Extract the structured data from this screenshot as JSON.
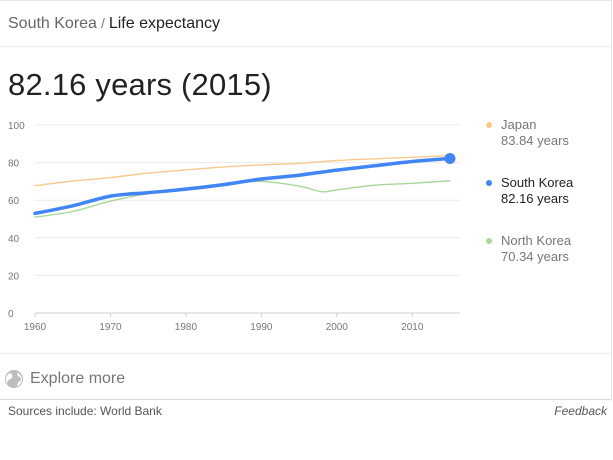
{
  "breadcrumb": {
    "country": "South Korea",
    "separator": "/",
    "topic": "Life expectancy"
  },
  "headline": "82.16 years (2015)",
  "legend": [
    {
      "name": "Japan",
      "value": "83.84 years",
      "color": "#f7c98e"
    },
    {
      "name": "South Korea",
      "value": "82.16 years",
      "color": "#4285f4"
    },
    {
      "name": "North Korea",
      "value": "70.34 years",
      "color": "#a8d79a"
    }
  ],
  "explore_label": "Explore more",
  "sources": "Sources include: World Bank",
  "feedback": "Feedback",
  "icons": {
    "explore": "globe-icon"
  },
  "chart_data": {
    "type": "line",
    "xlim": [
      1960,
      2015
    ],
    "ylim": [
      0,
      100
    ],
    "x_ticks": [
      1960,
      1970,
      1980,
      1990,
      2000,
      2010
    ],
    "y_ticks": [
      0,
      20,
      40,
      60,
      80,
      100
    ],
    "grid": true,
    "legend_position": "right",
    "series": [
      {
        "name": "Japan",
        "color": "#f7c98e",
        "x": [
          1960,
          1965,
          1970,
          1975,
          1980,
          1985,
          1990,
          1995,
          2000,
          2005,
          2010,
          2015
        ],
        "y": [
          67.7,
          70.2,
          72.0,
          74.4,
          76.1,
          77.7,
          78.8,
          79.6,
          81.1,
          82.0,
          82.8,
          83.84
        ]
      },
      {
        "name": "South Korea",
        "color": "#4285f4",
        "x": [
          1960,
          1965,
          1970,
          1975,
          1980,
          1985,
          1990,
          1995,
          2000,
          2005,
          2010,
          2015
        ],
        "y": [
          53.0,
          57.0,
          62.2,
          64.0,
          65.9,
          68.3,
          71.3,
          73.3,
          76.0,
          78.3,
          80.6,
          82.16
        ]
      },
      {
        "name": "North Korea",
        "color": "#a8d79a",
        "x": [
          1960,
          1965,
          1970,
          1975,
          1980,
          1985,
          1990,
          1995,
          1998,
          2000,
          2005,
          2010,
          2015
        ],
        "y": [
          51.0,
          54.0,
          59.5,
          63.5,
          66.5,
          68.5,
          70.0,
          67.5,
          64.5,
          65.5,
          68.0,
          69.0,
          70.34
        ]
      }
    ],
    "highlight": {
      "series": "South Korea",
      "x": 2015,
      "y": 82.16
    }
  }
}
